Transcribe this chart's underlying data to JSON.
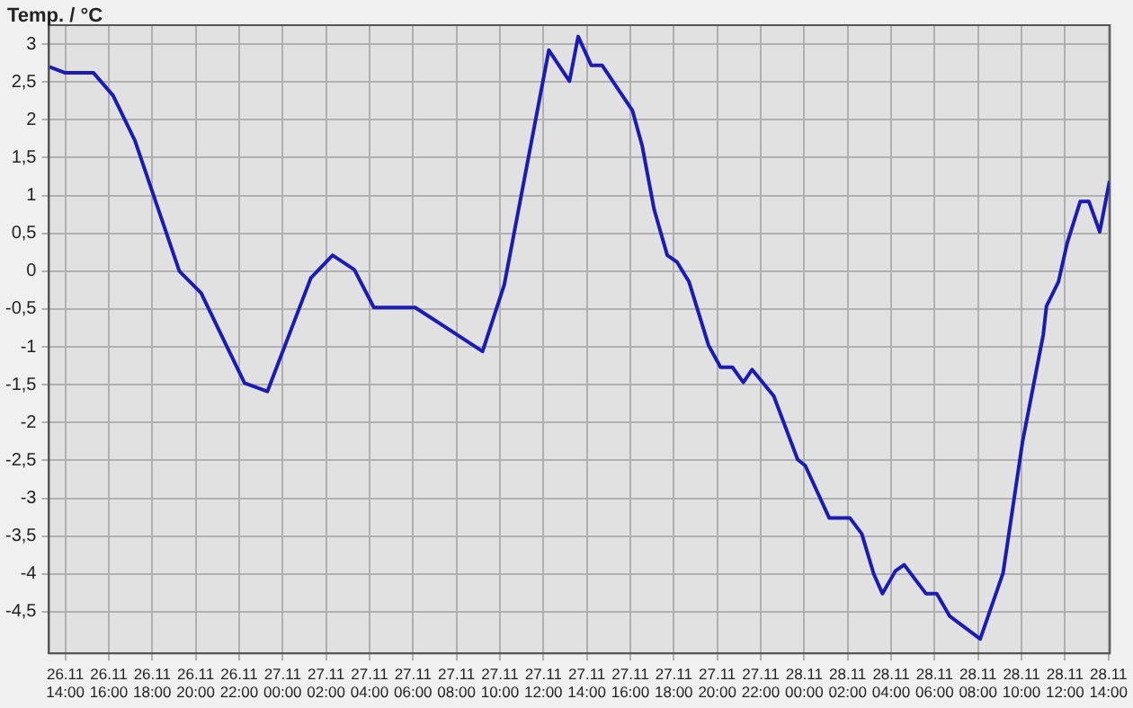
{
  "chart_data": {
    "type": "line",
    "ylabel": "Temp. / °C",
    "x": [
      "--11-26T13:16",
      "--11-26T14:00",
      "--11-26T15:18",
      "--11-26T16:12",
      "--11-26T17:12",
      "--11-26T19:15",
      "--11-26T20:15",
      "--11-26T22:15",
      "--11-26T23:18",
      "--11-27T01:18",
      "--11-27T02:18",
      "--11-27T03:18",
      "--11-27T04:12",
      "--11-27T06:06",
      "--11-27T09:12",
      "--11-27T10:12",
      "--11-27T12:15",
      "--11-27T13:12",
      "--11-27T13:36",
      "--11-27T14:12",
      "--11-27T14:42",
      "--11-27T16:06",
      "--11-27T16:33",
      "--11-27T17:06",
      "--11-27T17:42",
      "--11-27T18:09",
      "--11-27T18:42",
      "--11-27T19:36",
      "--11-27T20:09",
      "--11-27T20:42",
      "--11-27T21:12",
      "--11-27T21:36",
      "--11-27T22:36",
      "--11-27T23:42",
      "--11-28T00:03",
      "--11-28T01:09",
      "--11-28T02:06",
      "--11-28T02:39",
      "--11-28T03:12",
      "--11-28T03:36",
      "--11-28T04:12",
      "--11-28T04:36",
      "--11-28T05:36",
      "--11-28T06:06",
      "--11-28T06:42",
      "--11-28T08:06",
      "--11-28T09:09",
      "--11-28T10:03",
      "--11-28T11:00",
      "--11-28T11:09",
      "--11-28T11:42",
      "--11-28T12:06",
      "--11-28T12:42",
      "--11-28T13:06",
      "--11-28T13:36",
      "--11-28T14:03"
    ],
    "series": [
      {
        "color": "#1c1cb4",
        "values": [
          2.7,
          2.62,
          2.62,
          2.32,
          1.73,
          0,
          -0.29,
          -1.48,
          -1.59,
          -0.09,
          0.21,
          0.02,
          -0.48,
          -0.48,
          -1.06,
          -0.18,
          2.92,
          2.51,
          3.1,
          2.72,
          2.72,
          2.12,
          1.65,
          0.81,
          0.21,
          0.12,
          -0.14,
          -0.98,
          -1.27,
          -1.27,
          -1.47,
          -1.3,
          -1.65,
          -2.49,
          -2.57,
          -3.26,
          -3.26,
          -3.47,
          -4,
          -4.26,
          -3.96,
          -3.88,
          -4.26,
          -4.26,
          -4.56,
          -4.86,
          -3.99,
          -2.25,
          -0.84,
          -0.46,
          -0.14,
          0.37,
          0.92,
          0.92,
          0.52,
          1.19
        ]
      }
    ],
    "xlim": [
      "--11-26T13:15",
      "--11-28T14:04"
    ],
    "xticks": [
      {
        "value": "--11-26T14:00",
        "label": "26.11 14:00"
      },
      {
        "value": "--11-26T16:00",
        "label": "26.11 16:00"
      },
      {
        "value": "--11-26T18:00",
        "label": "26.11 18:00"
      },
      {
        "value": "--11-26T20:00",
        "label": "26.11 20:00"
      },
      {
        "value": "--11-26T22:00",
        "label": "26.11 22:00"
      },
      {
        "value": "--11-27T00:00",
        "label": "27.11 00:00"
      },
      {
        "value": "--11-27T02:00",
        "label": "27.11 02:00"
      },
      {
        "value": "--11-27T04:00",
        "label": "27.11 04:00"
      },
      {
        "value": "--11-27T06:00",
        "label": "27.11 06:00"
      },
      {
        "value": "--11-27T08:00",
        "label": "27.11 08:00"
      },
      {
        "value": "--11-27T10:00",
        "label": "27.11 10:00"
      },
      {
        "value": "--11-27T12:00",
        "label": "27.11 12:00"
      },
      {
        "value": "--11-27T14:00",
        "label": "27.11 14:00"
      },
      {
        "value": "--11-27T16:00",
        "label": "27.11 16:00"
      },
      {
        "value": "--11-27T18:00",
        "label": "27.11 18:00"
      },
      {
        "value": "--11-27T20:00",
        "label": "27.11 20:00"
      },
      {
        "value": "--11-27T22:00",
        "label": "27.11 22:00"
      },
      {
        "value": "--11-28T00:00",
        "label": "28.11 00:00"
      },
      {
        "value": "--11-28T02:00",
        "label": "28.11 02:00"
      },
      {
        "value": "--11-28T04:00",
        "label": "28.11 04:00"
      },
      {
        "value": "--11-28T06:00",
        "label": "28.11 06:00"
      },
      {
        "value": "--11-28T08:00",
        "label": "28.11 08:00"
      },
      {
        "value": "--11-28T10:00",
        "label": "28.11 10:00"
      },
      {
        "value": "--11-28T12:00",
        "label": "28.11 12:00"
      },
      {
        "value": "--11-28T14:00",
        "label": "28.11 14:00"
      }
    ],
    "ylim": [
      -5.05,
      3.25
    ],
    "yticks": [
      {
        "value": -4.5,
        "label": "-4,5"
      },
      -4,
      {
        "value": -3.5,
        "label": "-3,5"
      },
      -3,
      {
        "value": -2.5,
        "label": "-2,5"
      },
      -2,
      {
        "value": -1.5,
        "label": "-1,5"
      },
      -1,
      {
        "value": -0.5,
        "label": "-0,5"
      },
      0,
      {
        "value": 0.5,
        "label": "0,5"
      },
      1,
      {
        "value": 1.5,
        "label": "1,5"
      },
      2,
      {
        "value": 2.5,
        "label": "2,5"
      },
      3
    ],
    "grid": true,
    "legend": false,
    "marker": "none",
    "line_style": "solid"
  }
}
